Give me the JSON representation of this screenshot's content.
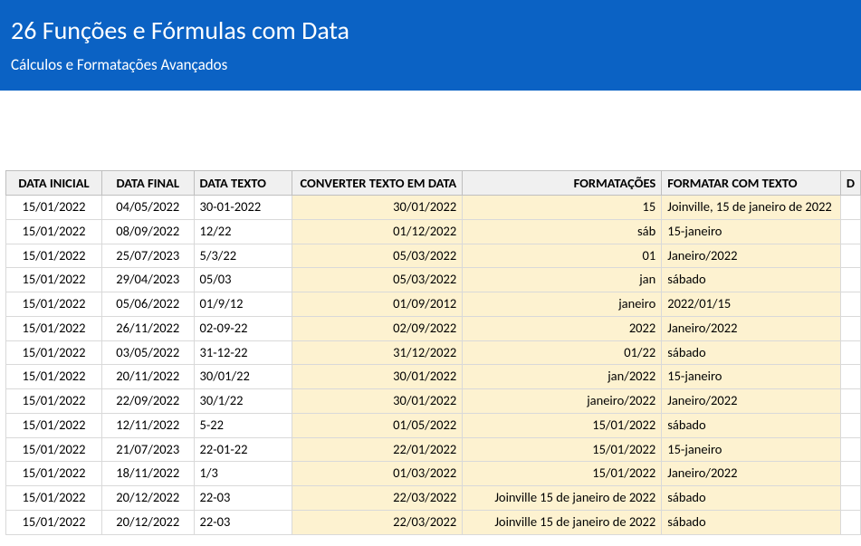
{
  "header": {
    "title": "26 Funções e Fórmulas com Data",
    "subtitle": "Cálculos e Formatações Avançados"
  },
  "table": {
    "columns": [
      "DATA INICIAL",
      "DATA FINAL",
      "DATA TEXTO",
      "CONVERTER TEXTO EM DATA",
      "FORMATAÇÕES",
      "FORMATAR COM TEXTO",
      "D"
    ],
    "column_classes": [
      "col-inicial",
      "col-final",
      "col-texto",
      "col-converter",
      "col-format",
      "col-ftexto",
      "col-extra"
    ],
    "highlight_cols": [
      3,
      4,
      5
    ],
    "header_bg": "#f0f0f0",
    "highlight_bg": "#fdf2d0",
    "border_color": "#d9d9d9",
    "rows": [
      [
        "15/01/2022",
        "04/05/2022",
        "30-01-2022",
        "30/01/2022",
        "15",
        "Joinville, 15 de janeiro de 2022",
        ""
      ],
      [
        "15/01/2022",
        "08/09/2022",
        "12/22",
        "01/12/2022",
        "sáb",
        "15-janeiro",
        ""
      ],
      [
        "15/01/2022",
        "25/07/2023",
        "5/3/22",
        "05/03/2022",
        "01",
        "Janeiro/2022",
        ""
      ],
      [
        "15/01/2022",
        "29/04/2023",
        "05/03",
        "05/03/2022",
        "jan",
        "sábado",
        ""
      ],
      [
        "15/01/2022",
        "05/06/2022",
        "01/9/12",
        "01/09/2012",
        "janeiro",
        "2022/01/15",
        ""
      ],
      [
        "15/01/2022",
        "26/11/2022",
        "02-09-22",
        "02/09/2022",
        "2022",
        "Janeiro/2022",
        ""
      ],
      [
        "15/01/2022",
        "03/05/2022",
        "31-12-22",
        "31/12/2022",
        "01/22",
        "sábado",
        ""
      ],
      [
        "15/01/2022",
        "20/11/2022",
        "30/01/22",
        "30/01/2022",
        "jan/2022",
        "15-janeiro",
        ""
      ],
      [
        "15/01/2022",
        "22/09/2022",
        "30/1/22",
        "30/01/2022",
        "janeiro/2022",
        "Janeiro/2022",
        ""
      ],
      [
        "15/01/2022",
        "12/11/2022",
        "5-22",
        "01/05/2022",
        "15/01/2022",
        "sábado",
        ""
      ],
      [
        "15/01/2022",
        "21/07/2023",
        "22-01-22",
        "22/01/2022",
        "15/01/2022",
        "15-janeiro",
        ""
      ],
      [
        "15/01/2022",
        "18/11/2022",
        "1/3",
        "01/03/2022",
        "15/01/2022",
        "Janeiro/2022",
        ""
      ],
      [
        "15/01/2022",
        "20/12/2022",
        "22-03",
        "22/03/2022",
        "Joinville 15 de janeiro de 2022",
        "sábado",
        ""
      ],
      [
        "15/01/2022",
        "20/12/2022",
        "22-03",
        "22/03/2022",
        "Joinville 15 de janeiro de 2022",
        "sábado",
        ""
      ]
    ]
  },
  "colors": {
    "header_bg": "#0b62c4",
    "header_text": "#ffffff",
    "body_bg": "#ffffff"
  },
  "typography": {
    "title_fontsize": 28,
    "subtitle_fontsize": 17,
    "cell_fontsize": 14.5,
    "header_weight": 700
  }
}
